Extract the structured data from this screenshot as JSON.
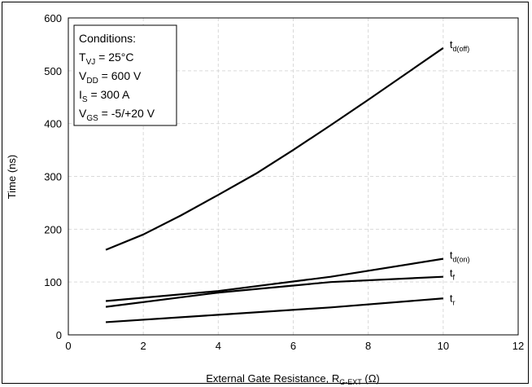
{
  "chart_data": {
    "type": "line",
    "xlabel": {
      "main": "External Gate Resistance, R",
      "sub": "G-EXT",
      "tail": " (Ω)"
    },
    "ylabel": "Time (ns)",
    "xlim": [
      0,
      12
    ],
    "ylim": [
      0,
      600
    ],
    "xticks": [
      "0",
      "2",
      "4",
      "6",
      "8",
      "10",
      "12"
    ],
    "yticks": [
      "0",
      "100",
      "200",
      "300",
      "400",
      "500",
      "600"
    ],
    "grid": true,
    "conditions": [
      {
        "main": "Conditions:",
        "sub": "",
        "tail": ""
      },
      {
        "main": "T",
        "sub": "VJ",
        "tail": " = 25°C"
      },
      {
        "main": "V",
        "sub": "DD",
        "tail": " = 600 V"
      },
      {
        "main": "I",
        "sub": "S",
        "tail": " = 300 A"
      },
      {
        "main": "V",
        "sub": "GS",
        "tail": " = -5/+20 V"
      }
    ],
    "series": [
      {
        "name": "t",
        "sub": "d(off)",
        "x": [
          1,
          2,
          3,
          4,
          5,
          6,
          7,
          8,
          9,
          10
        ],
        "y": [
          161,
          190,
          226,
          265,
          305,
          350,
          397,
          445,
          494,
          543
        ]
      },
      {
        "name": "t",
        "sub": "d(on)",
        "x": [
          1,
          4,
          7,
          10
        ],
        "y": [
          64,
          83,
          110,
          144
        ]
      },
      {
        "name": "t",
        "sub": "f",
        "x": [
          1,
          4,
          7,
          10
        ],
        "y": [
          53,
          80,
          100,
          110
        ]
      },
      {
        "name": "t",
        "sub": "r",
        "x": [
          1,
          4,
          7,
          10
        ],
        "y": [
          24,
          38,
          52,
          69
        ]
      }
    ]
  }
}
